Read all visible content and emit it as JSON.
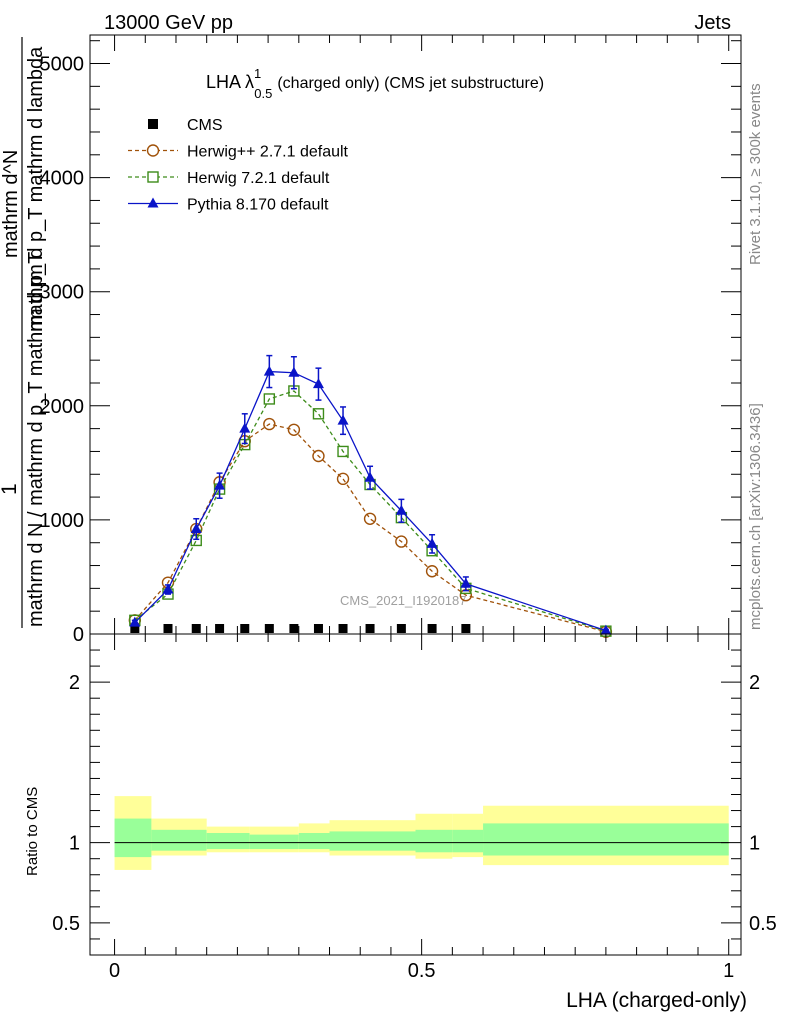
{
  "header": {
    "energy": "13000 GeV pp",
    "process": "Jets"
  },
  "side": {
    "rivet": "Rivet 3.1.10, ≥ 300k events",
    "mcplots": "mcplots.cern.ch [arXiv:1306.3436]"
  },
  "watermark": "CMS_2021_I1920187",
  "chart_data": [
    {
      "type": "line",
      "title": "LHA λ¹₀.₅ (charged only) (CMS jet substructure)",
      "title_main": "LHA λ",
      "title_sup": "1",
      "title_sub": "0.5",
      "title_rest": "(charged only) (CMS jet substructure)",
      "ylabel_lines": [
        "1",
        "mathrm d N / mathrm d p_T mathrm d p_T",
        "mathrm d^N",
        "mathrm d p_T mathrm d lambda"
      ],
      "ylabel_top": "mathrm d lambda",
      "xlim": [
        -0.04,
        1.02
      ],
      "ylim": [
        0,
        5250
      ],
      "yticks": [
        0,
        1000,
        2000,
        3000,
        4000,
        5000
      ],
      "ytick_labels": [
        "0",
        "1000",
        "2000",
        "3000",
        "4000",
        "5000"
      ],
      "legend_position": "top-left",
      "x": [
        0.033,
        0.087,
        0.133,
        0.171,
        0.212,
        0.252,
        0.292,
        0.332,
        0.372,
        0.416,
        0.467,
        0.517,
        0.572,
        0.8
      ],
      "series": [
        {
          "name": "CMS",
          "color": "#000000",
          "marker": "square",
          "values": [
            8,
            8,
            8,
            8,
            8,
            8,
            8,
            8,
            8,
            8,
            8,
            8,
            8,
            null
          ]
        },
        {
          "name": "Herwig++ 2.7.1 default",
          "color": "#a0520a",
          "marker": "circle-open",
          "dash": true,
          "values": [
            120,
            450,
            920,
            1330,
            1690,
            1840,
            1790,
            1560,
            1360,
            1010,
            810,
            550,
            340,
            20
          ]
        },
        {
          "name": "Herwig 7.2.1 default",
          "color": "#3d8c1a",
          "marker": "square-open",
          "dash": true,
          "values": [
            120,
            350,
            820,
            1270,
            1660,
            2060,
            2130,
            1930,
            1600,
            1310,
            1020,
            730,
            400,
            25
          ]
        },
        {
          "name": "Pythia 8.170 default",
          "color": "#0a14c8",
          "marker": "triangle",
          "values": [
            100,
            390,
            920,
            1300,
            1800,
            2300,
            2290,
            2190,
            1870,
            1370,
            1080,
            790,
            440,
            30
          ],
          "errors": [
            20,
            40,
            90,
            110,
            130,
            140,
            140,
            140,
            120,
            100,
            100,
            80,
            60,
            10
          ]
        }
      ]
    },
    {
      "type": "area",
      "ylabel": "Ratio to CMS",
      "xlabel": "LHA (charged-only)",
      "xlim": [
        -0.04,
        1.02
      ],
      "ylim": [
        0.3,
        2.3
      ],
      "yticks": [
        0.5,
        1,
        2
      ],
      "ytick_labels": [
        "0.5",
        "1",
        "2"
      ],
      "xticks": [
        0,
        0.5,
        1
      ],
      "xtick_labels": [
        "0",
        "0.5",
        "1"
      ],
      "bins": [
        {
          "lo": 0.0,
          "hi": 0.06,
          "total_up": 1.29,
          "total_dn": 0.83,
          "stat_up": 1.15,
          "stat_dn": 0.91
        },
        {
          "lo": 0.06,
          "hi": 0.15,
          "total_up": 1.15,
          "total_dn": 0.92,
          "stat_up": 1.08,
          "stat_dn": 0.95
        },
        {
          "lo": 0.15,
          "hi": 0.22,
          "total_up": 1.1,
          "total_dn": 0.94,
          "stat_up": 1.06,
          "stat_dn": 0.96
        },
        {
          "lo": 0.22,
          "hi": 0.3,
          "total_up": 1.1,
          "total_dn": 0.94,
          "stat_up": 1.05,
          "stat_dn": 0.96
        },
        {
          "lo": 0.3,
          "hi": 0.35,
          "total_up": 1.12,
          "total_dn": 0.94,
          "stat_up": 1.06,
          "stat_dn": 0.96
        },
        {
          "lo": 0.35,
          "hi": 0.49,
          "total_up": 1.14,
          "total_dn": 0.92,
          "stat_up": 1.07,
          "stat_dn": 0.95
        },
        {
          "lo": 0.49,
          "hi": 0.55,
          "total_up": 1.18,
          "total_dn": 0.9,
          "stat_up": 1.08,
          "stat_dn": 0.94
        },
        {
          "lo": 0.55,
          "hi": 0.6,
          "total_up": 1.18,
          "total_dn": 0.91,
          "stat_up": 1.08,
          "stat_dn": 0.94
        },
        {
          "lo": 0.6,
          "hi": 1.0,
          "total_up": 1.23,
          "total_dn": 0.86,
          "stat_up": 1.12,
          "stat_dn": 0.92
        }
      ],
      "colors": {
        "total": "#ffff99",
        "stat": "#99ff99"
      }
    }
  ]
}
